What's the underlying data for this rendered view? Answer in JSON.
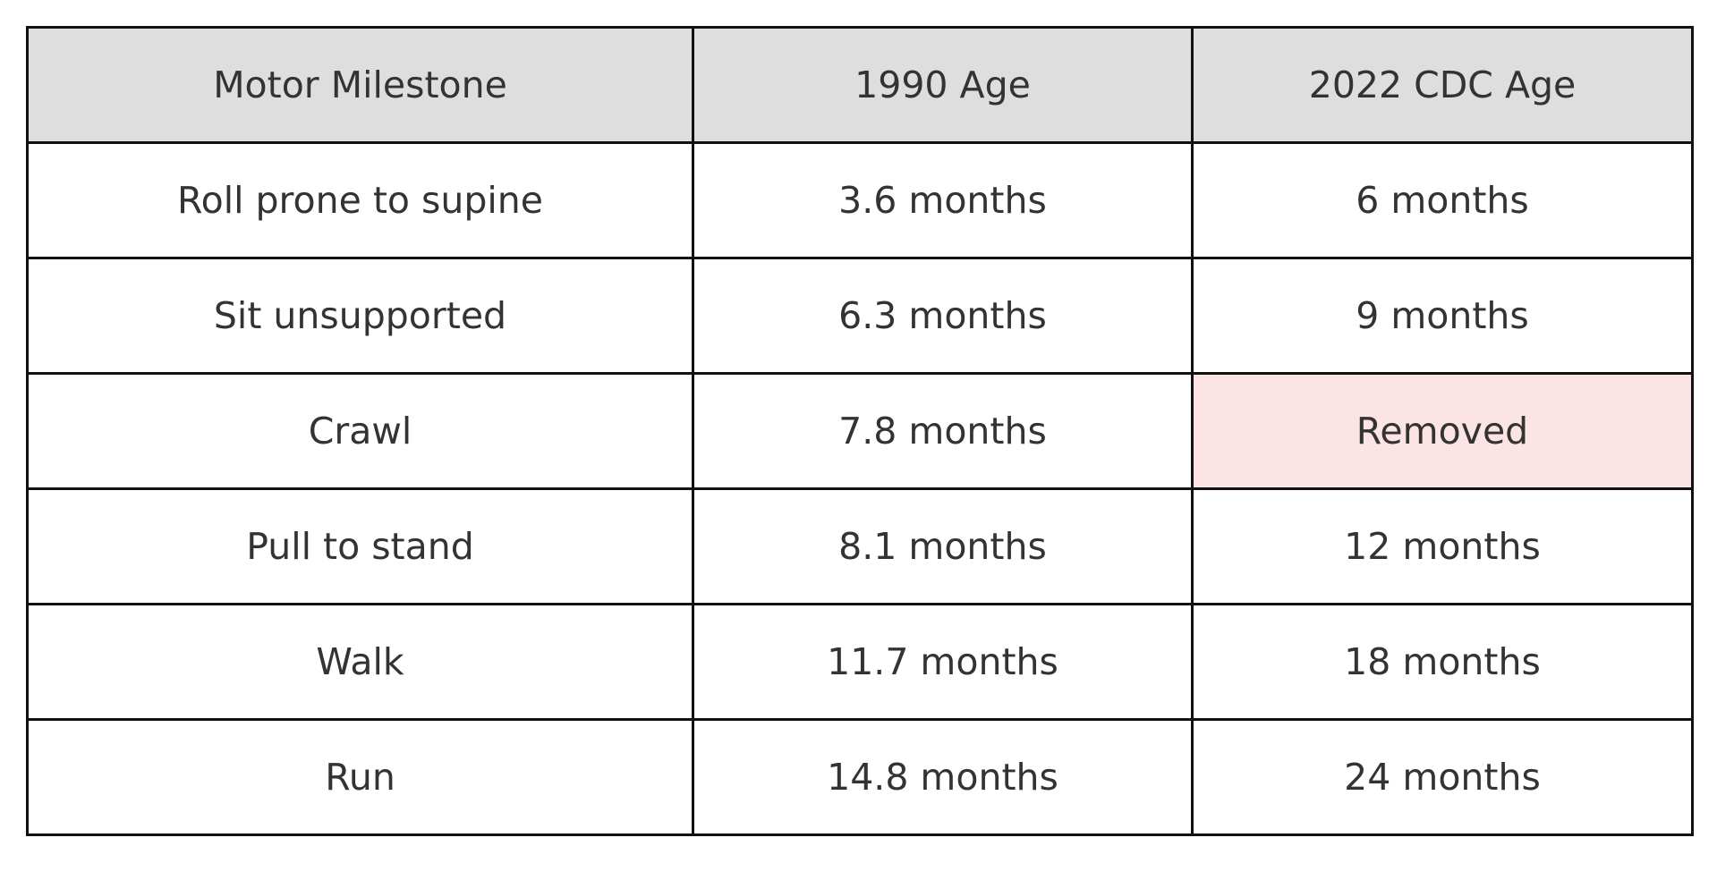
{
  "chart_data": {
    "type": "table",
    "columns": [
      "Motor Milestone",
      "1990 Age",
      "2022 CDC Age"
    ],
    "rows": [
      [
        "Roll prone to supine",
        "3.6 months",
        "6 months"
      ],
      [
        "Sit unsupported",
        "6.3 months",
        "9 months"
      ],
      [
        "Crawl",
        "7.8 months",
        "Removed"
      ],
      [
        "Pull to stand",
        "8.1 months",
        "12 months"
      ],
      [
        "Walk",
        "11.7 months",
        "18 months"
      ],
      [
        "Run",
        "14.8 months",
        "24 months"
      ]
    ],
    "highlight_cells": [
      [
        2,
        2
      ]
    ],
    "colors": {
      "header_bg": "#dedede",
      "highlight_bg": "#fde4e4",
      "border": "#111111",
      "text": "#333333"
    }
  }
}
